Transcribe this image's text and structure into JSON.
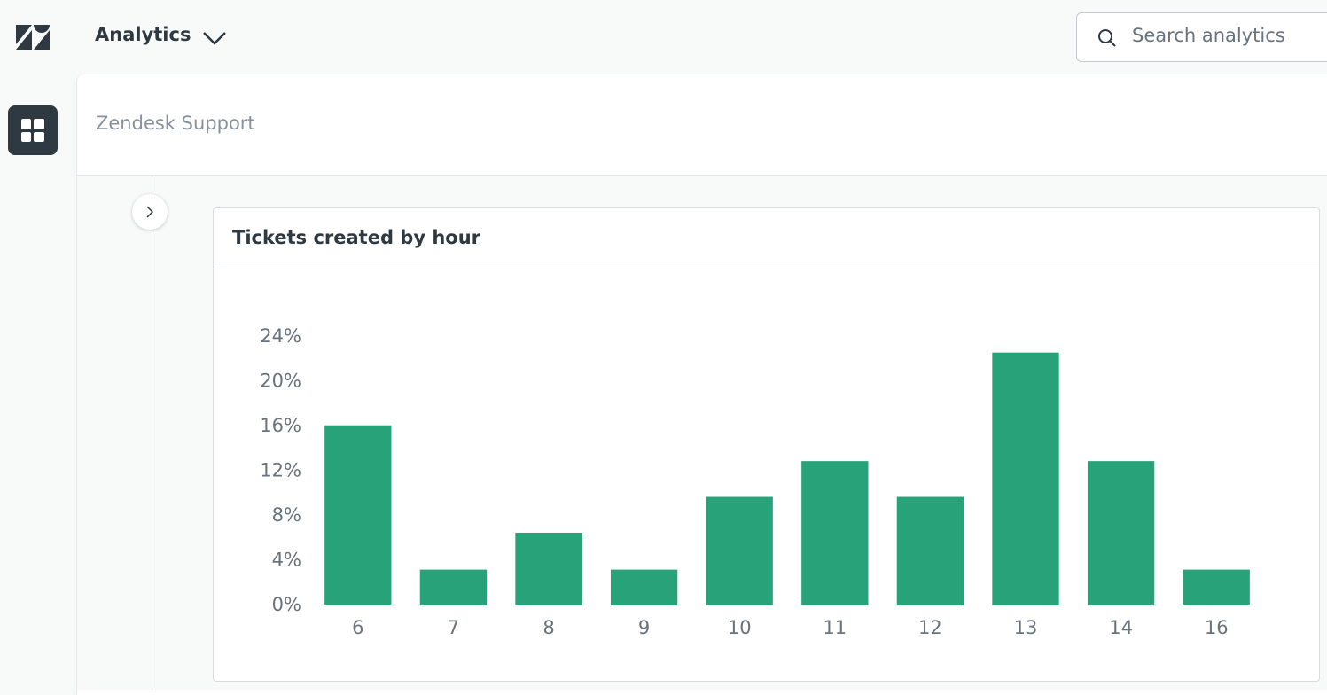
{
  "header": {
    "app_title": "Analytics",
    "search_placeholder": "Search analytics"
  },
  "workspace": {
    "title": "Zendesk Support"
  },
  "chart_data": {
    "type": "bar",
    "title": "Tickets created by hour",
    "categories": [
      "6",
      "7",
      "8",
      "9",
      "10",
      "11",
      "12",
      "13",
      "14",
      "16"
    ],
    "values": [
      16.1,
      3.2,
      6.5,
      3.2,
      9.7,
      12.9,
      9.7,
      22.6,
      12.9,
      3.2
    ],
    "color": "#28a279",
    "ylim": [
      0,
      24
    ],
    "yticks": [
      {
        "value": 0,
        "label": "0%"
      },
      {
        "value": 4,
        "label": "4%"
      },
      {
        "value": 8,
        "label": "8%"
      },
      {
        "value": 12,
        "label": "12%"
      },
      {
        "value": 16,
        "label": "16%"
      },
      {
        "value": 20,
        "label": "20%"
      },
      {
        "value": 24,
        "label": "24%"
      }
    ],
    "grid": false
  }
}
